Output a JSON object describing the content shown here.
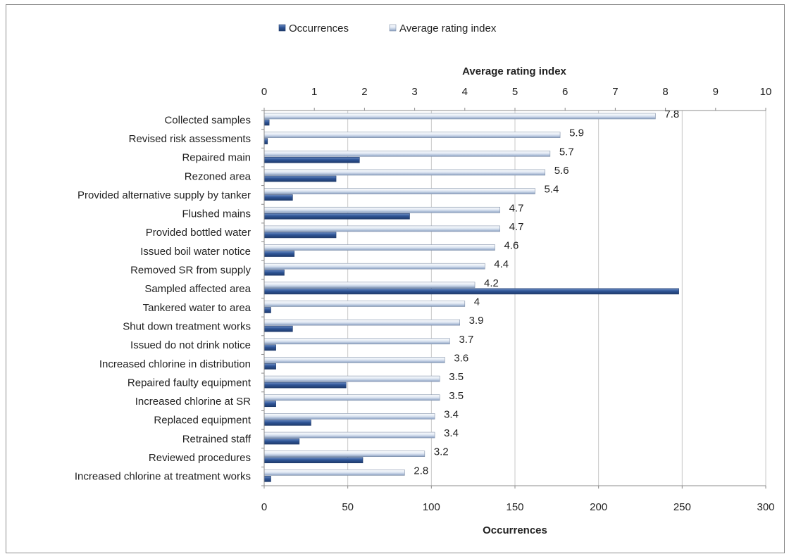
{
  "chart_data": {
    "type": "bar",
    "orientation": "horizontal",
    "legend": {
      "placement": "top",
      "entries": [
        "Occurrences",
        "Average rating index"
      ]
    },
    "categories": [
      "Collected samples",
      "Revised risk assessments",
      "Repaired main",
      "Rezoned area",
      "Provided alternative supply by tanker",
      "Flushed mains",
      "Provided bottled water",
      "Issued boil water notice",
      "Removed SR from supply",
      "Sampled affected area",
      "Tankered water to area",
      "Shut down treatment works",
      "Issued do not drink notice",
      "Increased chlorine in distribution",
      "Repaired faulty equipment",
      "Increased chlorine at SR",
      "Replaced equipment",
      "Retrained staff",
      "Reviewed procedures",
      "Increased chlorine at treatment works"
    ],
    "series": [
      {
        "name": "Occurrences",
        "axis": "bottom",
        "color": "#2f5597",
        "values": [
          3,
          2,
          57,
          43,
          17,
          87,
          43,
          18,
          12,
          248,
          4,
          17,
          7,
          7,
          49,
          7,
          28,
          21,
          59,
          4
        ]
      },
      {
        "name": "Average rating index",
        "axis": "top",
        "color": "#c5d3e8",
        "values": [
          7.8,
          5.9,
          5.7,
          5.6,
          5.4,
          4.7,
          4.7,
          4.6,
          4.4,
          4.2,
          4,
          3.9,
          3.7,
          3.6,
          3.5,
          3.5,
          3.4,
          3.4,
          3.2,
          2.8
        ],
        "data_labels": [
          "7.8",
          "5.9",
          "5.7",
          "5.6",
          "5.4",
          "4.7",
          "4.7",
          "4.6",
          "4.4",
          "4.2",
          "4",
          "3.9",
          "3.7",
          "3.6",
          "3.5",
          "3.5",
          "3.4",
          "3.4",
          "3.2",
          "2.8"
        ]
      }
    ],
    "x_top": {
      "label": "Average rating index",
      "range": [
        0,
        10
      ],
      "ticks": [
        "0",
        "1",
        "2",
        "3",
        "4",
        "5",
        "6",
        "7",
        "8",
        "9",
        "10"
      ]
    },
    "x_bottom": {
      "label": "Occurrences",
      "range": [
        0,
        300
      ],
      "ticks": [
        "0",
        "50",
        "100",
        "150",
        "200",
        "250",
        "300"
      ]
    },
    "grid": true
  }
}
